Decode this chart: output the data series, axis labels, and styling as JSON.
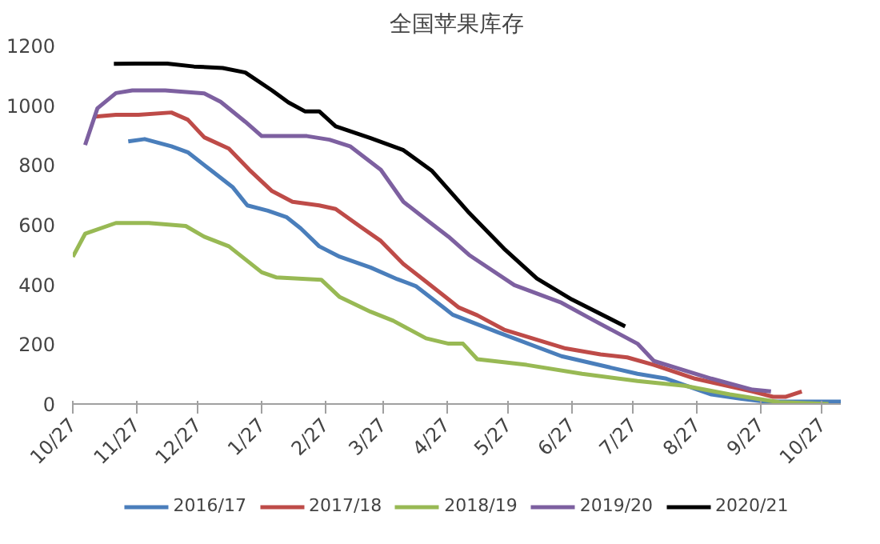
{
  "chart_data": {
    "type": "line",
    "title": "全国苹果库存",
    "xlim": [
      "2020-10-27",
      "2021-11-05"
    ],
    "ylim": [
      0,
      1200
    ],
    "xticks": [
      {
        "value": "2020-10-27",
        "label": "10/27"
      },
      {
        "value": "2020-11-27",
        "label": "11/27"
      },
      {
        "value": "2020-12-27",
        "label": "12/27"
      },
      {
        "value": "2021-01-27",
        "label": "1/27"
      },
      {
        "value": "2021-02-27",
        "label": "2/27"
      },
      {
        "value": "2021-03-27",
        "label": "3/27"
      },
      {
        "value": "2021-04-27",
        "label": "4/27"
      },
      {
        "value": "2021-05-27",
        "label": "5/27"
      },
      {
        "value": "2021-06-27",
        "label": "6/27"
      },
      {
        "value": "2021-07-27",
        "label": "7/27"
      },
      {
        "value": "2021-08-27",
        "label": "8/27"
      },
      {
        "value": "2021-09-27",
        "label": "9/27"
      },
      {
        "value": "2021-10-27",
        "label": "10/27"
      }
    ],
    "yticks": [
      0,
      200,
      400,
      600,
      800,
      1000,
      1200
    ],
    "grid": false,
    "legend": "bottom",
    "marker": "none",
    "line_style": "solid",
    "series": [
      {
        "name": "2016/17",
        "color": "#4a7ebb",
        "x": [
          "2020-11-23",
          "2020-12-01",
          "2020-12-14",
          "2020-12-22",
          "2021-01-02",
          "2021-01-13",
          "2021-01-20",
          "2021-01-30",
          "2021-02-08",
          "2021-02-15",
          "2021-02-24",
          "2021-03-06",
          "2021-03-21",
          "2021-04-03",
          "2021-04-12",
          "2021-04-26",
          "2021-04-30",
          "2021-05-22",
          "2021-06-22",
          "2021-07-29",
          "2021-08-12",
          "2021-09-03",
          "2021-09-17",
          "2021-09-29",
          "2021-11-05"
        ],
        "values": [
          879,
          887,
          863,
          843,
          784,
          725,
          665,
          647,
          626,
          588,
          528,
          493,
          457,
          418,
          395,
          321,
          299,
          240,
          160,
          101,
          85,
          32,
          18,
          8,
          8
        ]
      },
      {
        "name": "2017/18",
        "color": "#be4b48",
        "x": [
          "2020-11-07",
          "2020-11-17",
          "2020-11-28",
          "2020-12-14",
          "2020-12-22",
          "2020-12-30",
          "2021-01-11",
          "2021-01-21",
          "2021-02-01",
          "2021-02-11",
          "2021-02-24",
          "2021-03-04",
          "2021-03-16",
          "2021-03-26",
          "2021-04-06",
          "2021-04-17",
          "2021-04-28",
          "2021-05-03",
          "2021-05-12",
          "2021-05-25",
          "2021-06-24",
          "2021-07-11",
          "2021-07-24",
          "2021-08-06",
          "2021-08-26",
          "2021-09-12",
          "2021-09-23",
          "2021-10-03",
          "2021-10-09",
          "2021-10-17"
        ],
        "values": [
          962,
          968,
          968,
          976,
          952,
          893,
          855,
          784,
          713,
          677,
          665,
          653,
          594,
          546,
          469,
          410,
          350,
          323,
          297,
          249,
          186,
          166,
          156,
          131,
          85,
          59,
          42,
          24,
          24,
          42
        ]
      },
      {
        "name": "2018/19",
        "color": "#98b954",
        "x": [
          "2020-10-27",
          "2020-11-02",
          "2020-11-17",
          "2020-12-03",
          "2020-12-21",
          "2020-12-30",
          "2021-01-11",
          "2021-01-27",
          "2021-02-03",
          "2021-02-25",
          "2021-03-06",
          "2021-03-21",
          "2021-04-01",
          "2021-04-17",
          "2021-04-28",
          "2021-05-05",
          "2021-05-12",
          "2021-06-05",
          "2021-07-02",
          "2021-07-29",
          "2021-08-21",
          "2021-09-12",
          "2021-10-06",
          "2021-10-30"
        ],
        "values": [
          493,
          570,
          606,
          606,
          596,
          560,
          528,
          441,
          424,
          416,
          358,
          309,
          279,
          220,
          202,
          202,
          150,
          131,
          101,
          77,
          61,
          32,
          6,
          0
        ]
      },
      {
        "name": "2019/20",
        "color": "#7d60a0",
        "x": [
          "2020-11-02",
          "2020-11-08",
          "2020-11-17",
          "2020-11-25",
          "2020-12-11",
          "2020-12-30",
          "2021-01-07",
          "2021-01-19",
          "2021-01-27",
          "2021-02-18",
          "2021-03-01",
          "2021-03-11",
          "2021-03-26",
          "2021-04-06",
          "2021-04-17",
          "2021-04-28",
          "2021-05-08",
          "2021-05-30",
          "2021-06-22",
          "2021-07-08",
          "2021-07-29",
          "2021-08-06",
          "2021-09-03",
          "2021-09-23",
          "2021-10-02"
        ],
        "values": [
          867,
          990,
          1041,
          1050,
          1050,
          1040,
          1012,
          945,
          897,
          897,
          885,
          863,
          784,
          677,
          618,
          560,
          499,
          398,
          339,
          279,
          202,
          144,
          85,
          48,
          42
        ]
      },
      {
        "name": "2020/21",
        "color": "#000000",
        "x": [
          "2020-11-16",
          "2020-11-27",
          "2020-12-12",
          "2020-12-25",
          "2021-01-08",
          "2021-01-19",
          "2021-02-01",
          "2021-02-09",
          "2021-02-17",
          "2021-02-24",
          "2021-03-04",
          "2021-03-21",
          "2021-04-06",
          "2021-04-20",
          "2021-05-08",
          "2021-05-25",
          "2021-06-10",
          "2021-06-27",
          "2021-07-23"
        ],
        "values": [
          1139,
          1140,
          1140,
          1130,
          1125,
          1110,
          1050,
          1010,
          980,
          980,
          930,
          890,
          850,
          780,
          640,
          520,
          420,
          350,
          260
        ]
      }
    ]
  }
}
